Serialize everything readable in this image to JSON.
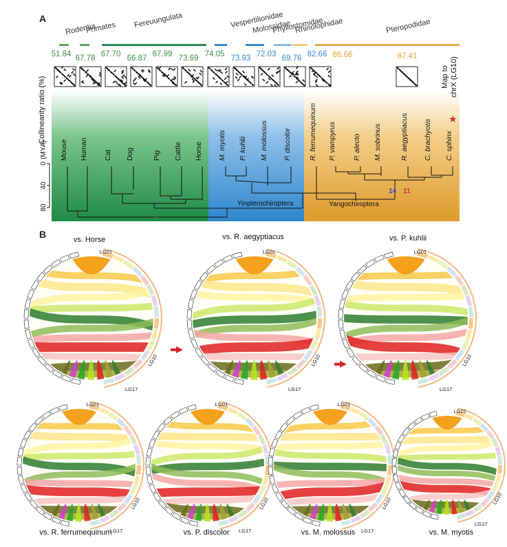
{
  "panel_a": {
    "letter": "A",
    "y_label_ratio": "Collinearity ratio (%)",
    "y_label_time": "(MYA)",
    "time_ticks": [
      "0",
      "40",
      "80"
    ],
    "map_label_line1": "Map to",
    "map_label_line2": "chrX (LG10)",
    "clades": [
      {
        "name": "Rodentia",
        "color": "#5aa35e"
      },
      {
        "name": "Primates",
        "color": "#5aa35e"
      },
      {
        "name": "Fereuungulata",
        "color": "#2e8b57"
      },
      {
        "name": "Vespertilionidae",
        "color": "#3a86c8"
      },
      {
        "name": "Molossidae",
        "color": "#3a86c8"
      },
      {
        "name": "Phyllostomidae",
        "color": "#8ab8de"
      },
      {
        "name": "Rhinolophidae",
        "color": "#f2cf75"
      },
      {
        "name": "Pteropodidae",
        "color": "#e2b04a"
      }
    ],
    "ratios": [
      {
        "value": "51.84",
        "color": "#3f8f46"
      },
      {
        "value": "67.78",
        "color": "#3f8f46"
      },
      {
        "value": "67.70",
        "color": "#3f8f46"
      },
      {
        "value": "66.87",
        "color": "#3f8f46"
      },
      {
        "value": "67.99",
        "color": "#3f8f46"
      },
      {
        "value": "73.69",
        "color": "#3f8f46"
      },
      {
        "value": "74.05",
        "color": "#3f8f46"
      },
      {
        "value": "73.93",
        "color": "#3a86c8"
      },
      {
        "value": "72.03",
        "color": "#3a86c8"
      },
      {
        "value": "69.76",
        "color": "#3a86c8"
      },
      {
        "value": "82.66",
        "color": "#3a86c8"
      },
      {
        "value": "86.66",
        "color": "#e2a63a"
      },
      {
        "value": "87.41",
        "color": "#e2a63a"
      }
    ],
    "taxa": [
      {
        "name": "Mouse",
        "color": "#111111"
      },
      {
        "name": "Human",
        "color": "#111111"
      },
      {
        "name": "Cat",
        "color": "#111111"
      },
      {
        "name": "Dog",
        "color": "#111111"
      },
      {
        "name": "Pig",
        "color": "#111111"
      },
      {
        "name": "Cattle",
        "color": "#111111"
      },
      {
        "name": "Horse",
        "color": "#111111"
      },
      {
        "name": "M. myotis",
        "color": "#111111"
      },
      {
        "name": "P. kuhlii",
        "color": "#111111"
      },
      {
        "name": "M. molossus",
        "color": "#111111"
      },
      {
        "name": "P. discolor",
        "color": "#111111"
      },
      {
        "name": "R. ferrumequinum",
        "color": "#111111"
      },
      {
        "name": "P. vampyrus",
        "color": "#c0392b"
      },
      {
        "name": "P. alecto",
        "color": "#c0392b"
      },
      {
        "name": "M. sobrinus",
        "color": "#c0392b"
      },
      {
        "name": "R. aegyptiacus",
        "color": "#c0392b"
      },
      {
        "name": "C. brachyotis",
        "color": "#c0392b"
      },
      {
        "name": "C. sphinx",
        "color": "#c0392b"
      }
    ],
    "node_labels": {
      "yinptero": "Yinpterochiroptera",
      "yango": "Yangochiroptera",
      "n14": "14",
      "n11": "11"
    },
    "region_colors": {
      "green": "#2e9a52",
      "blue": "#3a8fd0",
      "orange": "#e0a03a"
    }
  },
  "panel_b": {
    "letter": "B",
    "circos": [
      {
        "title": "vs. Horse",
        "lg01": "LG01",
        "lg10": "LG10",
        "lg17": "LG17"
      },
      {
        "title": "vs. R. aegyptiacus",
        "lg01": "LG01",
        "lg10": "LG10",
        "lg17": "LG17"
      },
      {
        "title": "vs. P. kuhlii",
        "lg01": "LG01",
        "lg10": "LG10",
        "lg17": "LG17"
      },
      {
        "title": "vs. R. ferrumequinum",
        "lg01": "LG01",
        "lg10": "LG10",
        "lg17": "LG17"
      },
      {
        "title": "vs. P. discolor",
        "lg01": "LG01",
        "lg10": "LG10",
        "lg17": "LG17"
      },
      {
        "title": "vs. M. molossus",
        "lg01": "LG01",
        "lg10": "LG10",
        "lg17": "LG17"
      },
      {
        "title": "vs. M. myotis",
        "lg01": "LG01",
        "lg10": "LG10",
        "lg17": "LG17"
      }
    ],
    "band_colors": [
      "#f39c12",
      "#f7c948",
      "#fde68a",
      "#fff3a0",
      "#cde86a",
      "#2f7d2f",
      "#8fbc5a",
      "#f4a6a6",
      "#e02020",
      "#f7c6c6",
      "#6b6b1f",
      "#a3a335",
      "#d63ad6",
      "#22aa22",
      "#b5e61d",
      "#c8d8f0"
    ]
  }
}
